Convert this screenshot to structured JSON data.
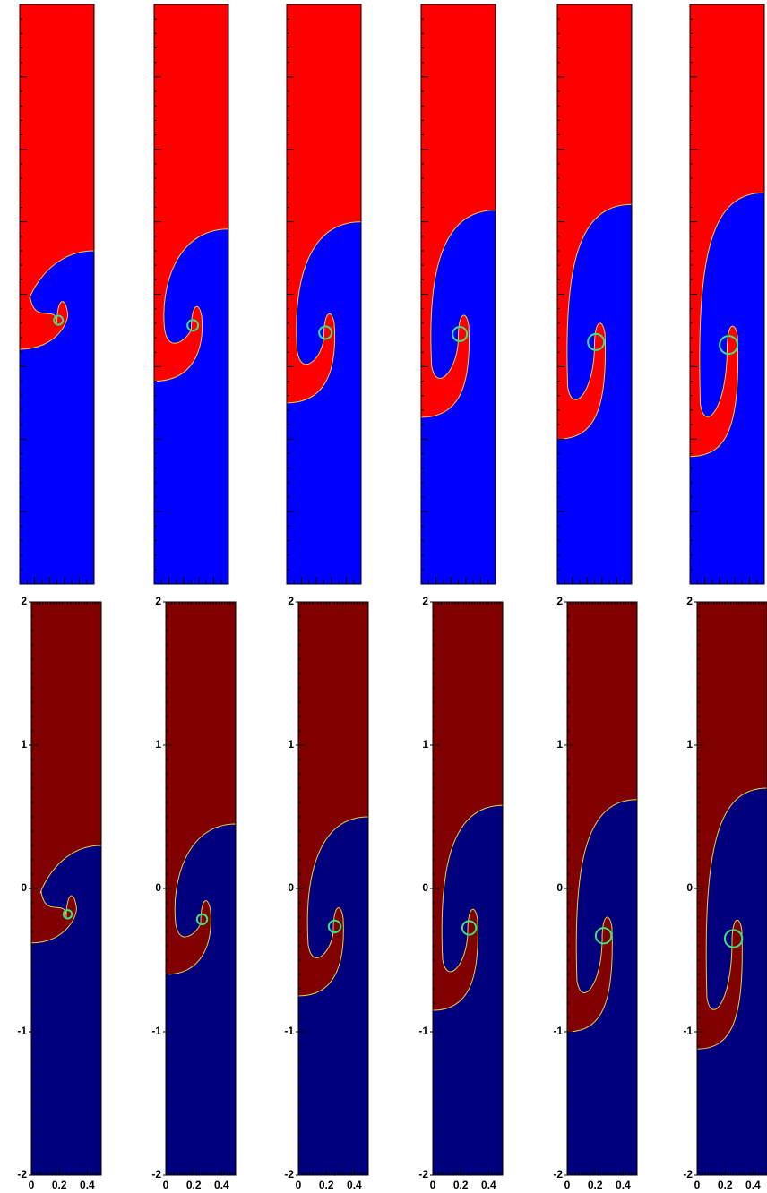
{
  "panels": [
    {
      "xlim": [
        0,
        0.5
      ],
      "ylim": [
        -2,
        2
      ],
      "xticks": [
        0,
        0.2,
        0.4
      ],
      "yticks": [
        2,
        1,
        0,
        -1,
        -2
      ]
    },
    {
      "xlim": [
        0,
        0.5
      ],
      "ylim": [
        -2,
        2
      ],
      "xticks": [
        0,
        0.2,
        0.4
      ],
      "yticks": [
        2,
        1,
        0,
        -1,
        -2
      ]
    },
    {
      "xlim": [
        0,
        0.5
      ],
      "ylim": [
        -2,
        2
      ],
      "xticks": [
        0,
        0.2,
        0.4
      ],
      "yticks": [
        2,
        1,
        0,
        -1,
        -2
      ]
    },
    {
      "xlim": [
        0,
        0.5
      ],
      "ylim": [
        -2,
        2
      ],
      "xticks": [
        0,
        0.2,
        0.4
      ],
      "yticks": [
        2,
        1,
        0,
        -1,
        -2
      ]
    },
    {
      "xlim": [
        0,
        0.5
      ],
      "ylim": [
        -2,
        2
      ],
      "xticks": [
        0,
        0.2,
        0.4
      ],
      "yticks": [
        2,
        1,
        0,
        -1,
        -2
      ]
    },
    {
      "xlim": [
        0,
        0.5
      ],
      "ylim": [
        -2,
        2
      ],
      "xticks": [
        0,
        0.2,
        0.4
      ],
      "yticks": [
        2,
        1,
        0,
        -1,
        -2
      ]
    }
  ]
}
